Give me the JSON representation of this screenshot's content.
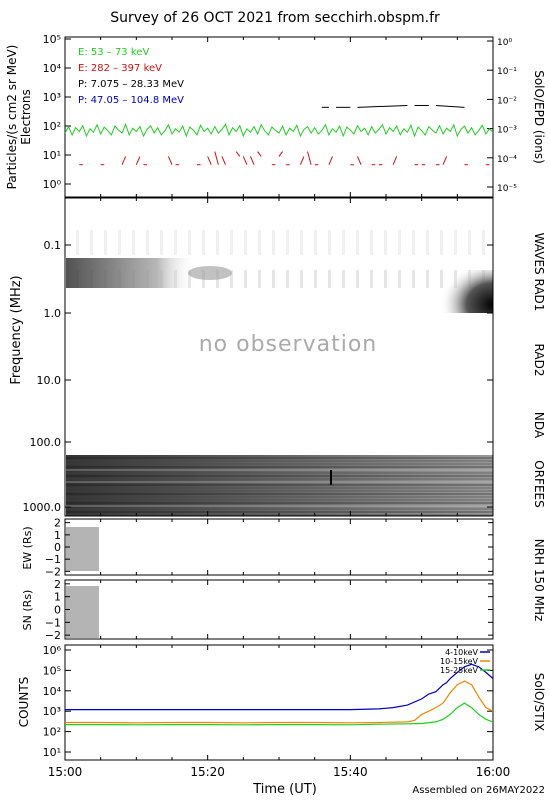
{
  "title": "Survey of 26 OCT 2021 from secchirh.obspm.fr",
  "footer": "Assembled on 26MAY2022",
  "xaxis": {
    "label": "Time (UT)",
    "ticks": [
      "15:00",
      "15:20",
      "15:40",
      "16:00"
    ],
    "tick_minutes": [
      0,
      20,
      40,
      60
    ],
    "range_minutes": [
      0,
      60
    ]
  },
  "no_observation": "no observation",
  "colors": {
    "green": "#22cc22",
    "red": "#cc1111",
    "black": "#000000",
    "blue": "#0000bb",
    "orange": "#ee8800"
  },
  "chart_data": [
    {
      "type": "line",
      "panel": "particles",
      "ylabel": "Particles/(s cm2 sr MeV)",
      "ylabel2": "Electrons",
      "right_label": "SolO/EPD (ions)",
      "yscale": "log",
      "ylim": [
        1,
        100000
      ],
      "yticks": [
        "10⁰",
        "10¹",
        "10²",
        "10³",
        "10⁴",
        "10⁵"
      ],
      "y2ticks": [
        "10⁻⁵",
        "10⁻⁴",
        "10⁻³",
        "10⁻²",
        "10⁻¹",
        "10⁰"
      ],
      "legend": [
        {
          "text": "E: 53 – 73 keV",
          "color": "green"
        },
        {
          "text": "E: 282 – 397 keV",
          "color": "red"
        },
        {
          "text": "P: 7.075 – 28.33 MeV",
          "color": "black"
        },
        {
          "text": "P: 47.05 – 104.8 MeV",
          "color": "blue"
        }
      ],
      "series": [
        {
          "color": "green",
          "x": [
            0,
            0.5,
            1,
            1.5,
            2,
            2.5,
            3,
            3.5,
            4,
            4.5,
            5,
            5.5,
            6,
            6.5,
            7,
            7.5,
            8,
            8.5,
            9,
            9.5,
            10,
            10.5,
            11,
            11.5,
            12,
            12.5,
            13,
            13.5,
            14,
            14.5,
            15,
            15.5,
            16,
            16.5,
            17,
            17.5,
            18,
            18.5,
            19,
            19.5,
            20,
            20.5,
            21,
            21.5,
            22,
            22.5,
            23,
            23.5,
            24,
            24.5,
            25,
            25.5,
            26,
            26.5,
            27,
            27.5,
            28,
            28.5,
            29,
            29.5,
            30,
            30.5,
            31,
            31.5,
            32,
            32.5,
            33,
            33.5,
            34,
            34.5,
            35,
            35.5,
            36,
            36.5,
            37,
            37.5,
            38,
            38.5,
            39,
            39.5,
            40,
            40.5,
            41,
            41.5,
            42,
            42.5,
            43,
            43.5,
            44,
            44.5,
            45,
            45.5,
            46,
            46.5,
            47,
            47.5,
            48,
            48.5,
            49,
            49.5,
            50,
            50.5,
            51,
            51.5,
            52,
            52.5,
            53,
            53.5,
            54,
            54.5,
            55,
            55.5,
            56,
            56.5,
            57,
            57.5,
            58,
            58.5,
            59,
            59.5,
            60
          ],
          "y": [
            70,
            120,
            60,
            110,
            80,
            130,
            55,
            100,
            75,
            140,
            65,
            115,
            85,
            60,
            125,
            90,
            70,
            145,
            60,
            105,
            80,
            120,
            55,
            95,
            130,
            70,
            110,
            60,
            85,
            140,
            65,
            100,
            75,
            125,
            55,
            115,
            90,
            60,
            135,
            80,
            105,
            65,
            120,
            70,
            95,
            145,
            60,
            110,
            80,
            130,
            55,
            100,
            75,
            120,
            65,
            140,
            85,
            60,
            115,
            90,
            70,
            125,
            60,
            105,
            80,
            135,
            55,
            95,
            120,
            70,
            110,
            65,
            85,
            140,
            60,
            100,
            75,
            125,
            55,
            115,
            90,
            65,
            130,
            80,
            105,
            60,
            120,
            70,
            95,
            140,
            65,
            110,
            80,
            125,
            60,
            100,
            75,
            135,
            55,
            115,
            85,
            60,
            120,
            90,
            70,
            130,
            65,
            105,
            80,
            140,
            55,
            95,
            125,
            70,
            110,
            60,
            85,
            135,
            65,
            100,
            75
          ]
        },
        {
          "color": "red",
          "x": [
            2,
            2.5,
            5,
            5.5,
            8,
            8.5,
            10,
            10.5,
            11,
            11.5,
            14.5,
            15,
            15.5,
            16,
            18.5,
            19,
            20,
            20.5,
            21,
            21.5,
            22,
            22.5,
            24,
            24.5,
            25,
            25.5,
            26,
            26.5,
            27,
            27.5,
            29,
            29.5,
            30,
            30.5,
            31,
            31.5,
            33,
            33.5,
            34,
            34.5,
            35,
            35.5,
            37,
            37.5,
            40,
            40.5,
            41,
            41.5,
            43,
            43.5,
            44,
            44.5,
            46,
            46.5,
            49,
            49.5,
            50,
            50.5,
            52,
            52.5,
            53,
            53.5,
            56,
            56.5,
            59,
            59.5
          ],
          "y": [
            5,
            5,
            5,
            5,
            5,
            10,
            5,
            10,
            5,
            5,
            10,
            5,
            5,
            5,
            5,
            5,
            10,
            5,
            15,
            5,
            10,
            5,
            15,
            10,
            10,
            5,
            10,
            5,
            15,
            10,
            5,
            5,
            10,
            15,
            5,
            5,
            5,
            10,
            15,
            5,
            5,
            5,
            5,
            10,
            5,
            5,
            10,
            5,
            5,
            5,
            5,
            5,
            5,
            10,
            5,
            5,
            5,
            5,
            5,
            5,
            5,
            10,
            5,
            5,
            5,
            5
          ]
        },
        {
          "color": "black",
          "x": [
            36,
            37,
            38,
            40,
            41,
            48,
            49,
            51,
            52,
            56,
            57
          ],
          "y": [
            600,
            600,
            600,
            600,
            600,
            700,
            700,
            700,
            700,
            600,
            600
          ]
        },
        {
          "color": "blue",
          "x": [],
          "y": []
        }
      ]
    },
    {
      "type": "heatmap",
      "panel": "waves-rad1",
      "ylabel": "Frequency (MHz)",
      "right_label": "WAVES RAD1",
      "yscale": "log",
      "ylim": [
        0.02,
        1.0
      ],
      "yticks": [
        "0.1",
        "1.0"
      ],
      "features": [
        "faint broadband emission",
        "drifting emission near 0.2 MHz",
        "burst onset near 1 MHz at end"
      ]
    },
    {
      "type": "heatmap",
      "panel": "rad2",
      "right_label": "RAD2",
      "yscale": "log",
      "ylim": [
        1.0,
        14
      ],
      "yticks": [
        "10.0"
      ],
      "text": "no observation"
    },
    {
      "type": "heatmap",
      "panel": "nda",
      "right_label": "NDA",
      "yscale": "log",
      "ylim": [
        14,
        80
      ],
      "yticks": [
        "100.0"
      ]
    },
    {
      "type": "heatmap",
      "panel": "orfees",
      "right_label": "ORFEES",
      "yscale": "log",
      "ylim": [
        140,
        1000
      ],
      "yticks": [
        "1000.0"
      ]
    },
    {
      "type": "heatmap",
      "panel": "nrh-ew",
      "ylabel": "EW (Rs)",
      "yticks": [
        "2",
        "1",
        "0",
        "−1",
        "−2"
      ],
      "ylim": [
        -2.3,
        2.3
      ],
      "data_range_minutes": [
        0,
        4.5
      ]
    },
    {
      "type": "heatmap",
      "panel": "nrh-sn",
      "ylabel": "SN (Rs)",
      "right_label": "NRH 150 MHz",
      "yticks": [
        "2",
        "1",
        "0",
        "−1",
        "−2"
      ],
      "ylim": [
        -2.3,
        2.3
      ],
      "data_range_minutes": [
        0,
        4.5
      ]
    },
    {
      "type": "line",
      "panel": "stix",
      "ylabel": "COUNTS",
      "right_label": "SolO/STIX",
      "yscale": "log",
      "ylim": [
        10,
        1000000
      ],
      "yticks": [
        "10¹",
        "10²",
        "10³",
        "10⁴",
        "10⁵",
        "10⁶"
      ],
      "series": [
        {
          "name": "4-10keV",
          "color": "blue",
          "x": [
            0,
            5,
            10,
            15,
            20,
            25,
            30,
            35,
            40,
            44,
            46,
            48,
            50,
            51,
            52,
            53,
            53.5,
            54,
            55,
            56,
            57,
            58,
            59,
            60
          ],
          "y": [
            1200,
            1200,
            1200,
            1200,
            1200,
            1200,
            1200,
            1200,
            1200,
            1300,
            1500,
            2000,
            4000,
            7000,
            9000,
            20000,
            25000,
            40000,
            80000,
            150000,
            200000,
            150000,
            80000,
            40000
          ]
        },
        {
          "name": "10-15keV",
          "color": "orange",
          "x": [
            0,
            5,
            10,
            15,
            20,
            25,
            30,
            35,
            40,
            44,
            48,
            49,
            50,
            51,
            52,
            53,
            54,
            55,
            56,
            57,
            58,
            59,
            60
          ],
          "y": [
            280,
            280,
            270,
            280,
            280,
            270,
            280,
            280,
            270,
            280,
            300,
            350,
            700,
            1000,
            1500,
            2500,
            8000,
            20000,
            30000,
            20000,
            5000,
            1500,
            1000
          ]
        },
        {
          "name": "15-25keV",
          "color": "green",
          "x": [
            0,
            5,
            10,
            15,
            20,
            25,
            30,
            35,
            40,
            44,
            48,
            50,
            52,
            53,
            54,
            55,
            56,
            57,
            58,
            59,
            60
          ],
          "y": [
            220,
            220,
            215,
            220,
            220,
            215,
            220,
            220,
            215,
            230,
            240,
            250,
            300,
            400,
            700,
            1500,
            2500,
            1500,
            700,
            400,
            300
          ]
        }
      ]
    }
  ]
}
